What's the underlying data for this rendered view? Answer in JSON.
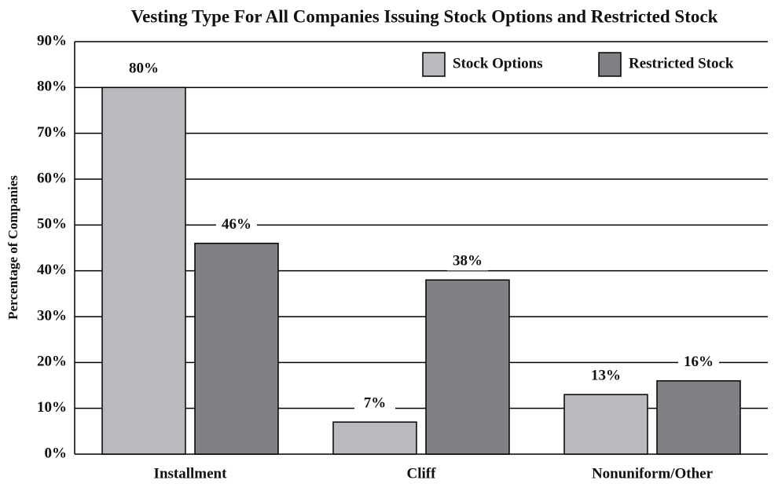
{
  "chart_data": {
    "type": "bar",
    "title": "Vesting Type For All Companies Issuing Stock Options and Restricted Stock",
    "y_label": "Percentage of Companies",
    "categories": [
      "Installment",
      "Cliff",
      "Nonuniform/Other"
    ],
    "series": [
      {
        "name": "Stock Options",
        "color": "#b9babd",
        "values": [
          80,
          7,
          13
        ],
        "value_labels": [
          "80%",
          "7%",
          "13%"
        ]
      },
      {
        "name": "Restricted Stock",
        "color": "#808184",
        "values": [
          46,
          38,
          16
        ],
        "value_labels": [
          "46%",
          "38%",
          "16%"
        ]
      }
    ],
    "ylim": [
      0,
      90
    ],
    "yticks": [
      {
        "value": 0,
        "label": "0%"
      },
      {
        "value": 10,
        "label": "10%"
      },
      {
        "value": 20,
        "label": "20%"
      },
      {
        "value": 30,
        "label": "30%"
      },
      {
        "value": 40,
        "label": "40%"
      },
      {
        "value": 50,
        "label": "50%"
      },
      {
        "value": 60,
        "label": "60%"
      },
      {
        "value": 70,
        "label": "70%"
      },
      {
        "value": 80,
        "label": "80%"
      },
      {
        "value": 90,
        "label": "90%"
      }
    ],
    "grid": true,
    "legend": "upper right"
  }
}
